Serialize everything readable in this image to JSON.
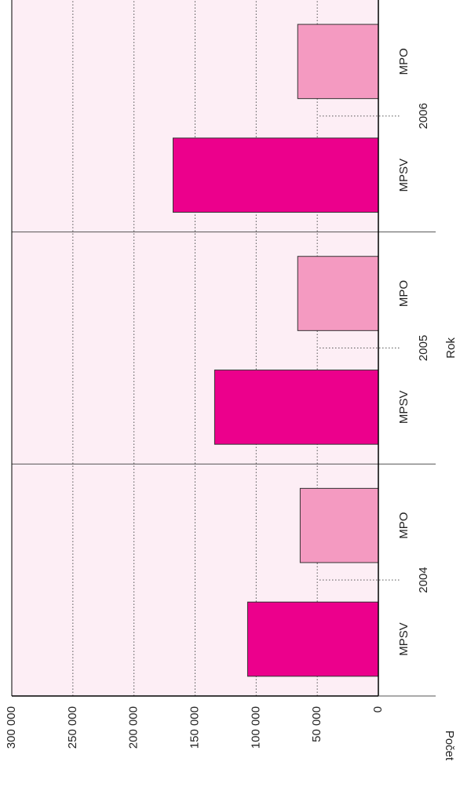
{
  "chart_data": {
    "type": "bar",
    "categories": [
      "2004",
      "2005",
      "2006"
    ],
    "series": [
      {
        "name": "MPSV",
        "color": "#ec008c",
        "values": [
          107000,
          134000,
          168000
        ]
      },
      {
        "name": "MPO",
        "color": "#f49ac1",
        "values": [
          64000,
          66000,
          66000
        ]
      }
    ],
    "x_label": "Rok",
    "y_label": "Počet",
    "ylim": [
      0,
      300000
    ],
    "yticks": [
      0,
      {
        "value": 50000,
        "label": "50 000"
      },
      {
        "value": 100000,
        "label": "100 000"
      },
      {
        "value": 150000,
        "label": "150 000"
      },
      {
        "value": 200000,
        "label": "200 000"
      },
      {
        "value": 250000,
        "label": "250 000"
      },
      {
        "value": 300000,
        "label": "300 000"
      }
    ],
    "grid": true
  }
}
